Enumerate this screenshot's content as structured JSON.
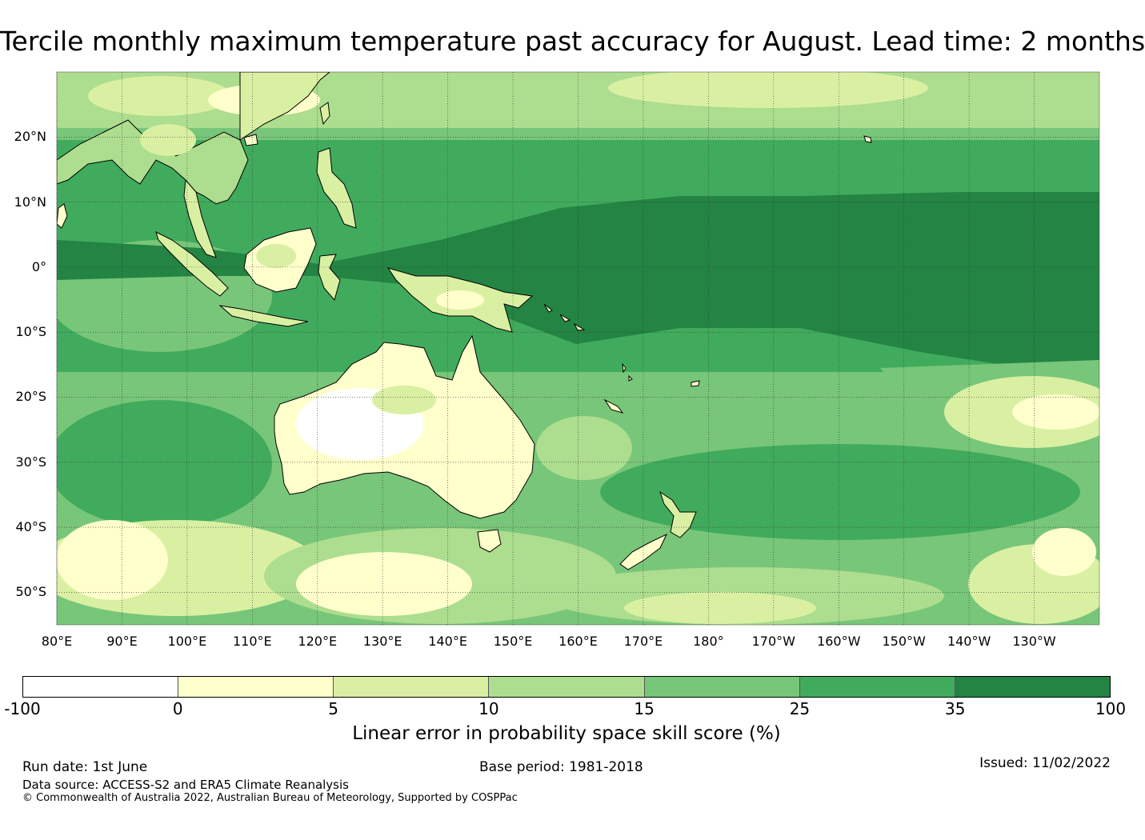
{
  "title": "Tercile monthly maximum temperature past accuracy for August. Lead time: 2 months",
  "map": {
    "region": "Pacific and Australia",
    "lon_range": [
      80,
      240
    ],
    "lat_range": [
      -55,
      30
    ],
    "latitude_labels": [
      "20°N",
      "10°N",
      "0°",
      "10°S",
      "20°S",
      "30°S",
      "40°S",
      "50°S"
    ],
    "latitude_values": [
      20,
      10,
      0,
      -10,
      -20,
      -30,
      -40,
      -50
    ],
    "longitude_labels": [
      "80°E",
      "90°E",
      "100°E",
      "110°E",
      "120°E",
      "130°E",
      "140°E",
      "150°E",
      "160°E",
      "170°E",
      "180°",
      "170°W",
      "160°W",
      "150°W",
      "140°W",
      "130°W"
    ],
    "longitude_values": [
      80,
      90,
      100,
      110,
      120,
      130,
      140,
      150,
      160,
      170,
      180,
      190,
      200,
      210,
      220,
      230
    ]
  },
  "colorbar": {
    "label": "Linear error in probability space skill score (%)",
    "ticks": [
      "-100",
      "0",
      "5",
      "10",
      "15",
      "25",
      "35",
      "100"
    ],
    "colors": [
      "#ffffff",
      "#ffffcc",
      "#d9f0a3",
      "#addd8e",
      "#78c679",
      "#41ab5d",
      "#238443"
    ]
  },
  "footer": {
    "run_date": "Run date: 1st June",
    "base_period": "Base period: 1981-2018",
    "issued": "Issued: 11/02/2022",
    "data_source": "Data source: ACCESS-S2 and ERA5 Climate Reanalysis",
    "copyright": "© Commonwealth of Australia 2022, Australian Bureau of Meteorology, Supported by COSPPac"
  }
}
